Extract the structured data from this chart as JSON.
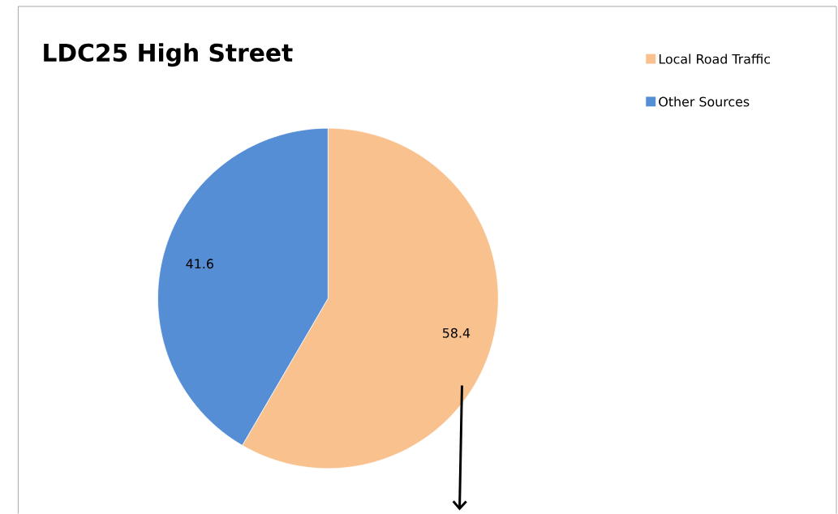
{
  "chart_data": {
    "type": "pie",
    "title": "LDC25 High Street",
    "categories": [
      "Local Road Traffic",
      "Other Sources"
    ],
    "values": [
      58.4,
      41.6
    ],
    "colors": [
      "#f9c18e",
      "#558ed5"
    ],
    "data_labels": true,
    "legend": "top right"
  }
}
